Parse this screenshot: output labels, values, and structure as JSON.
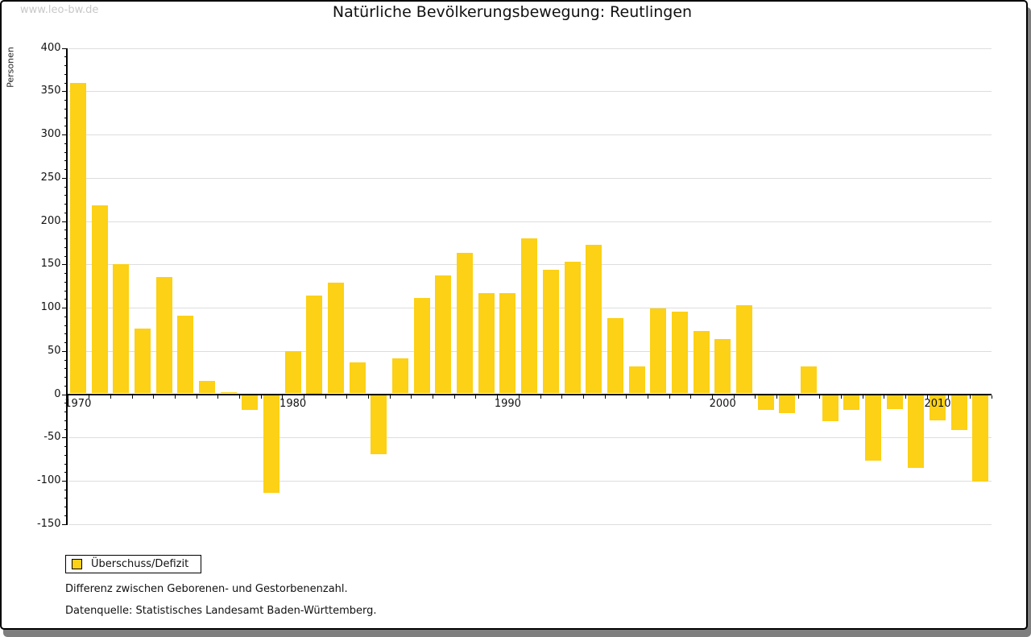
{
  "watermark": "www.leo-bw.de",
  "header": {
    "title": "Natürliche Bevölkerungsbewegung: Reutlingen"
  },
  "legend": {
    "label": "Überschuss/Defizit",
    "swatch_color": "#FCD116",
    "position": "bottom-left"
  },
  "footnotes": {
    "line1": "Differenz zwischen Geborenen- und Gestorbenenzahl.",
    "line2": "Datenquelle: Statistisches Landesamt Baden-Württemberg."
  },
  "chart_data": {
    "type": "bar",
    "title": "Natürliche Bevölkerungsbewegung: Reutlingen",
    "xlabel": "",
    "ylabel": "Personen",
    "ylim": [
      -150,
      400
    ],
    "ytick_step": 50,
    "y_minor_tick_step": 10,
    "grid": true,
    "gridline_color": "#dddddd",
    "bar_color": "#FCD116",
    "series_name": "Überschuss/Defizit",
    "x_labeled_ticks": [
      1970,
      1980,
      1990,
      2000,
      2010
    ],
    "categories": [
      1970,
      1971,
      1972,
      1973,
      1974,
      1975,
      1976,
      1977,
      1978,
      1979,
      1980,
      1981,
      1982,
      1983,
      1984,
      1985,
      1986,
      1987,
      1988,
      1989,
      1990,
      1991,
      1992,
      1993,
      1994,
      1995,
      1996,
      1997,
      1998,
      1999,
      2000,
      2001,
      2002,
      2003,
      2004,
      2005,
      2006,
      2007,
      2008,
      2009,
      2010,
      2011,
      2012
    ],
    "values": [
      360,
      218,
      150,
      76,
      135,
      91,
      15,
      2,
      -18,
      -114,
      50,
      114,
      129,
      37,
      -69,
      41,
      111,
      137,
      163,
      117,
      117,
      180,
      144,
      153,
      173,
      88,
      32,
      99,
      95,
      73,
      64,
      103,
      -18,
      -22,
      32,
      -31,
      -18,
      -77,
      -17,
      -85,
      -30,
      -41,
      -101
    ]
  }
}
